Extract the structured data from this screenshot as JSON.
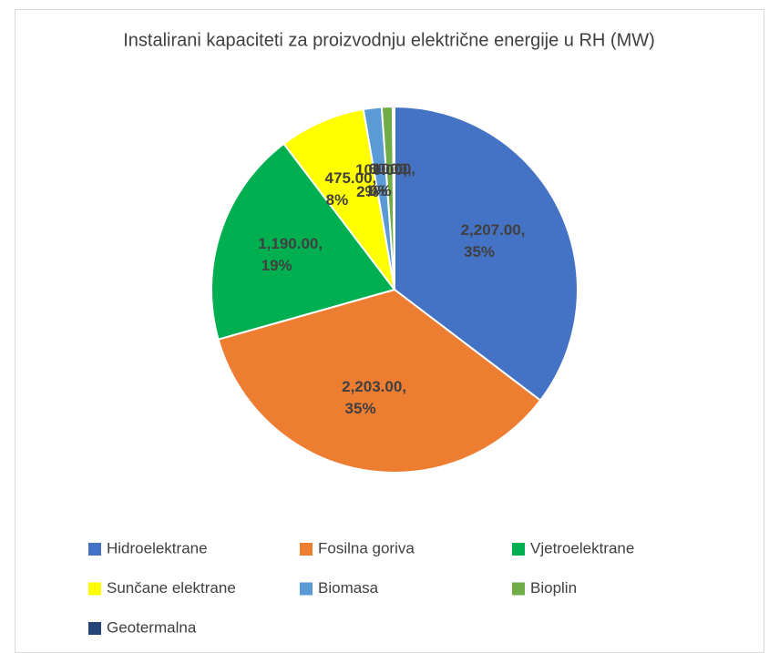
{
  "chart_data": {
    "type": "pie",
    "title": "Instalirani kapaciteti za proizvodnju električne energije u RH (MW)",
    "categories": [
      "Hidroelektrane",
      "Fosilna goriva",
      "Vjetroelektrane",
      "Sunčane elektrane",
      "Biomasa",
      "Bioplin",
      "Geotermalna"
    ],
    "values": [
      2207,
      2203,
      1190,
      475,
      100,
      60,
      10
    ],
    "value_labels": [
      "2,207.00,",
      "2,203.00,",
      "1,190.00,",
      "475.00,",
      "100.00,",
      "60.00,",
      "10.00,"
    ],
    "percent_labels": [
      "35%",
      "35%",
      "19%",
      "8%",
      "2%",
      "1%",
      "0%"
    ],
    "colors": [
      "#4472c4",
      "#ed7d31",
      "#00b050",
      "#ffff00",
      "#5b9bd5",
      "#70ad47",
      "#264478"
    ]
  }
}
